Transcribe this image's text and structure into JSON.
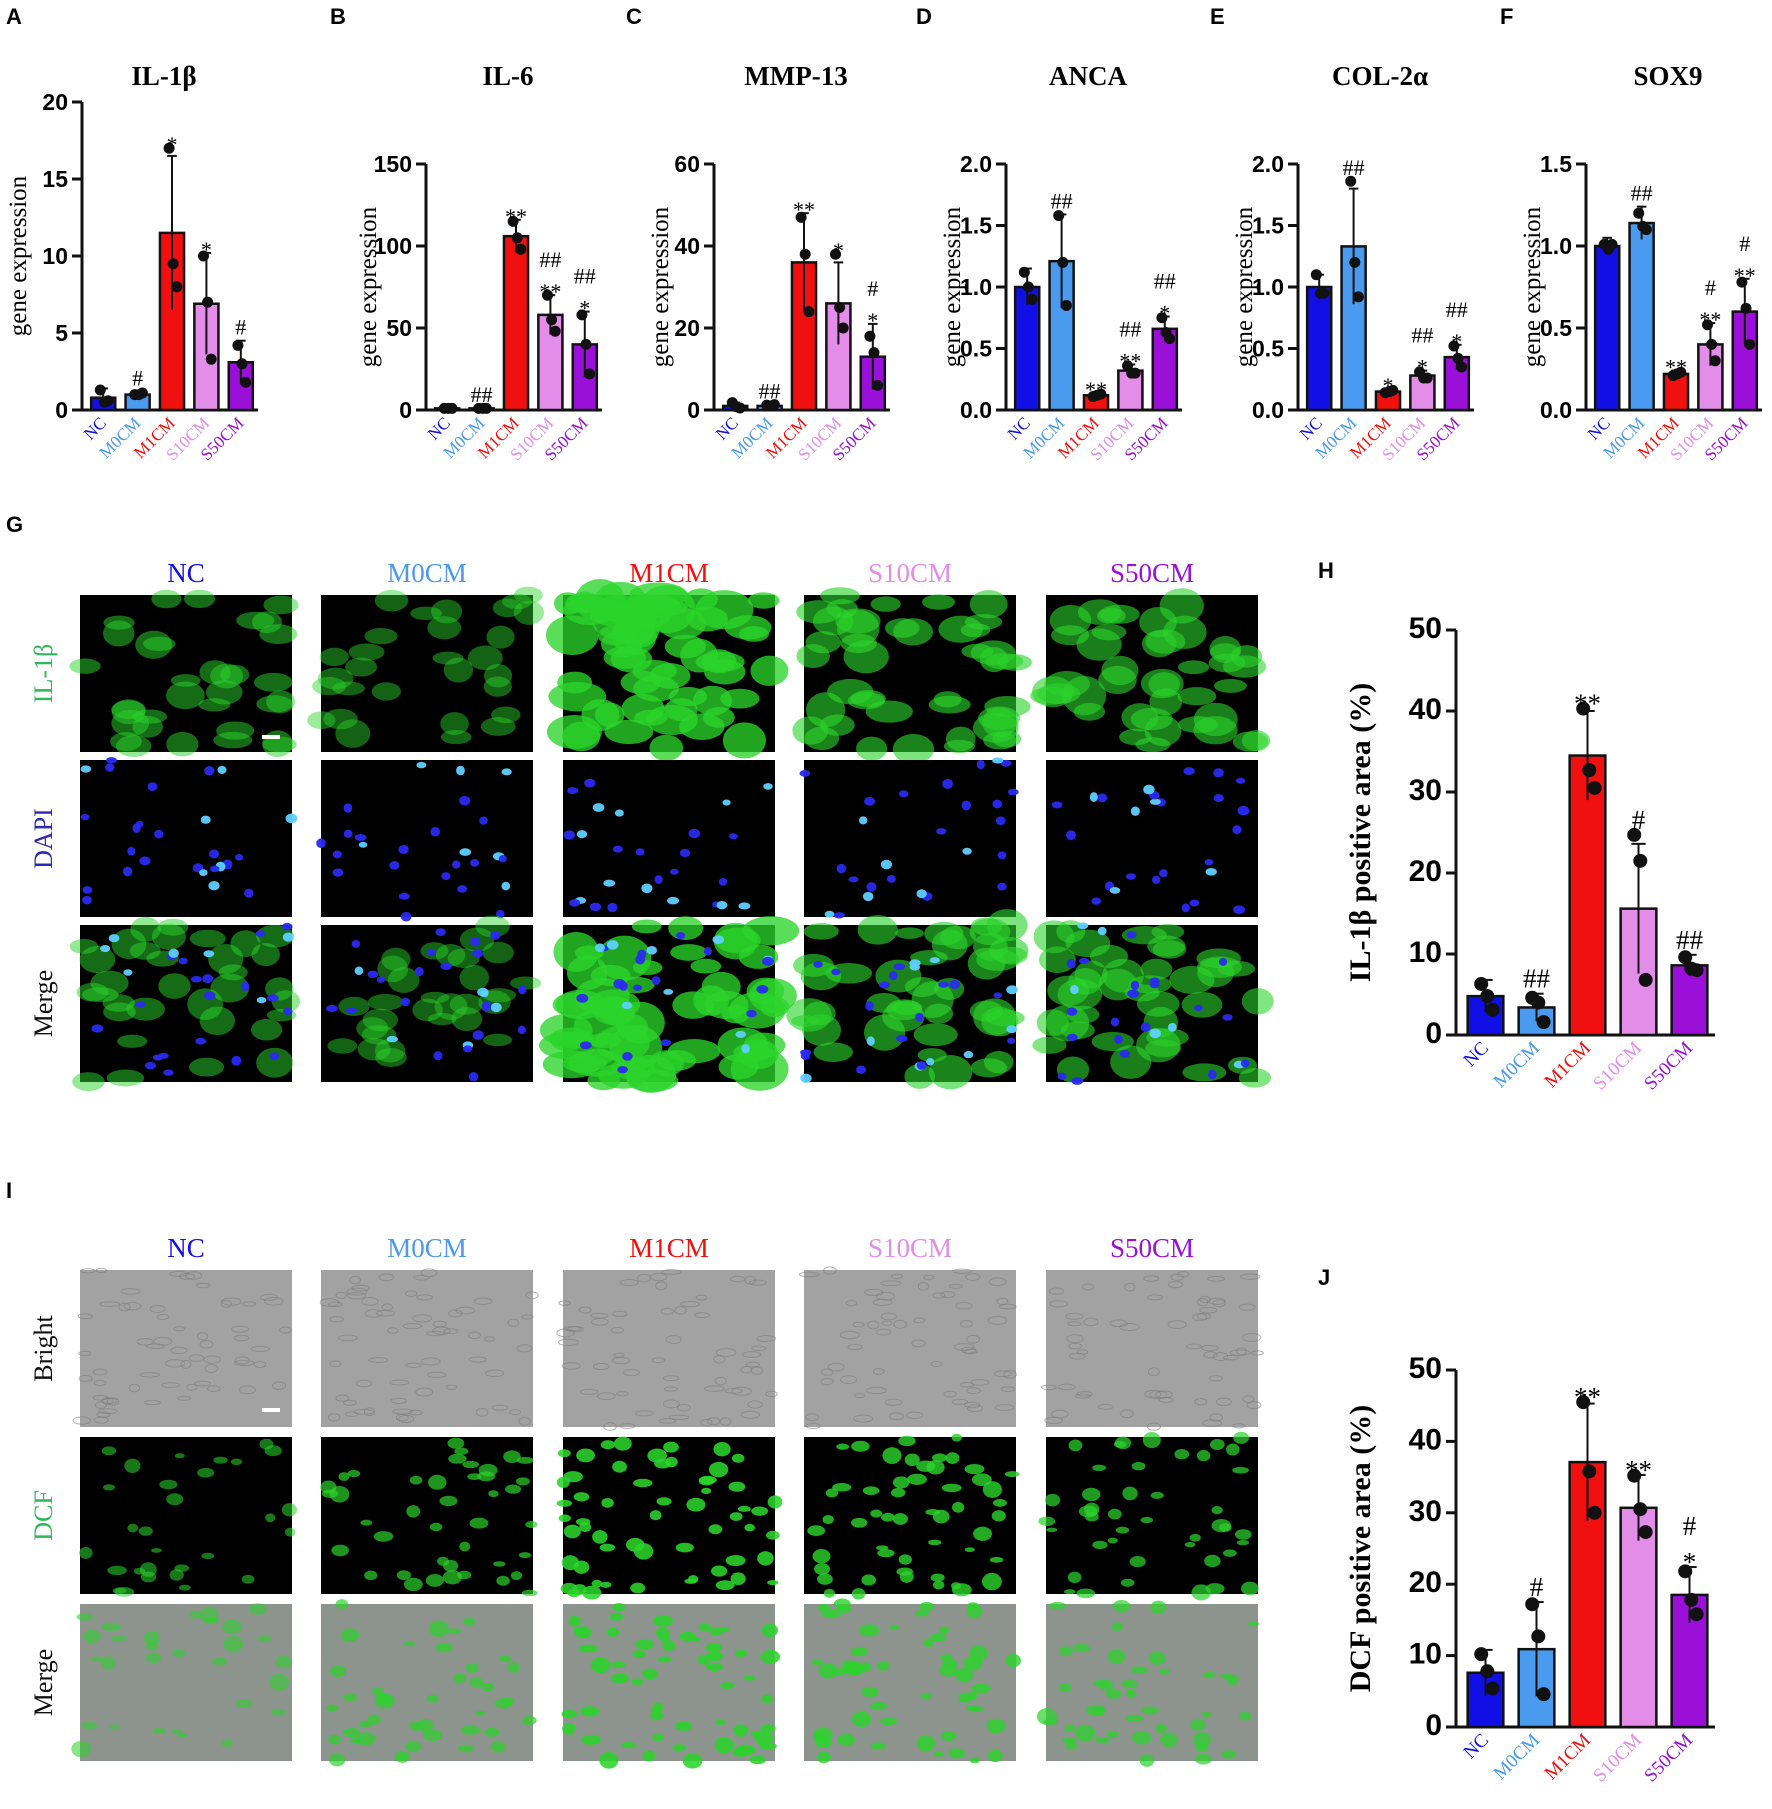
{
  "colors": {
    "NC": "#1010e6",
    "M0CM": "#4a9af0",
    "M1CM": "#f01010",
    "S10CM": "#e28ee8",
    "S50CM": "#9a10d8",
    "ink": "#111111",
    "fluor_green": "#2bd42b",
    "nuclei_blue": "#2a2af0",
    "bright_gray": "#9a9a9a"
  },
  "panel_letters": [
    "A",
    "B",
    "C",
    "D",
    "E",
    "F",
    "G",
    "H",
    "I",
    "J"
  ],
  "chart_data": [
    {
      "panel": "A",
      "type": "bar",
      "title": "IL-1β",
      "ylabel": "gene expression",
      "categories": [
        "NC",
        "M0CM",
        "M1CM",
        "S10CM",
        "S50CM"
      ],
      "values": [
        0.8,
        1.0,
        11.5,
        6.9,
        3.1
      ],
      "errors": [
        0.6,
        0.2,
        5.0,
        3.3,
        1.4
      ],
      "points": [
        [
          1.3,
          0.5,
          0.6
        ],
        [
          1.0,
          1.0,
          1.1
        ],
        [
          17.0,
          9.5,
          8.0
        ],
        [
          10.0,
          7.0,
          3.3
        ],
        [
          4.2,
          3.0,
          1.8
        ]
      ],
      "annotations": [
        "",
        "#",
        "*",
        "*",
        "#"
      ],
      "ylim": [
        0,
        20
      ],
      "yticks": [
        "0",
        "5",
        "10",
        "15",
        "20"
      ],
      "ytick_values": [
        0,
        5,
        10,
        15,
        20
      ]
    },
    {
      "panel": "B",
      "type": "bar",
      "title": "IL-6",
      "ylabel": "gene expression",
      "categories": [
        "NC",
        "M0CM",
        "M1CM",
        "S10CM",
        "S50CM"
      ],
      "values": [
        1,
        1,
        106,
        58,
        40
      ],
      "errors": [
        0.3,
        0.3,
        10,
        12,
        20
      ],
      "points": [
        [
          1,
          1,
          1
        ],
        [
          1,
          1,
          1
        ],
        [
          115,
          105,
          98
        ],
        [
          70,
          55,
          48
        ],
        [
          58,
          40,
          22
        ]
      ],
      "annotations": [
        "",
        "##",
        "**",
        "##\n**",
        "##\n*"
      ],
      "ylim": [
        0,
        150
      ],
      "yticks": [
        "0",
        "50",
        "100",
        "150"
      ],
      "ytick_values": [
        0,
        50,
        100,
        150
      ]
    },
    {
      "panel": "C",
      "type": "bar",
      "title": "MMP-13",
      "ylabel": "gene expression",
      "categories": [
        "NC",
        "M0CM",
        "M1CM",
        "S10CM",
        "S50CM"
      ],
      "values": [
        1,
        1,
        36,
        26,
        13
      ],
      "errors": [
        0.8,
        0.4,
        12,
        10,
        8
      ],
      "points": [
        [
          1.8,
          0.8,
          0.5
        ],
        [
          1.2,
          1.0,
          1.3
        ],
        [
          47,
          38,
          24
        ],
        [
          38,
          25,
          20
        ],
        [
          18,
          14,
          6
        ]
      ],
      "annotations": [
        "",
        "##",
        "**",
        "*",
        "#\n*"
      ],
      "ylim": [
        0,
        60
      ],
      "yticks": [
        "0",
        "20",
        "40",
        "60"
      ],
      "ytick_values": [
        0,
        20,
        40,
        60
      ]
    },
    {
      "panel": "D",
      "type": "bar",
      "title": "ANCA",
      "ylabel": "gene expression",
      "categories": [
        "NC",
        "M0CM",
        "M1CM",
        "S10CM",
        "S50CM"
      ],
      "values": [
        1.0,
        1.21,
        0.12,
        0.32,
        0.66
      ],
      "errors": [
        0.15,
        0.38,
        0.02,
        0.05,
        0.1
      ],
      "points": [
        [
          1.12,
          1.0,
          0.9
        ],
        [
          1.58,
          1.2,
          0.85
        ],
        [
          0.11,
          0.12,
          0.13
        ],
        [
          0.36,
          0.3,
          0.3
        ],
        [
          0.75,
          0.63,
          0.58
        ]
      ],
      "annotations": [
        "",
        "##",
        "**",
        "##\n**",
        "##\n*"
      ],
      "ylim": [
        0,
        2.0
      ],
      "yticks": [
        "0.0",
        "0.5",
        "1.0",
        "1.5",
        "2.0"
      ],
      "ytick_values": [
        0,
        0.5,
        1.0,
        1.5,
        2.0
      ]
    },
    {
      "panel": "E",
      "type": "bar",
      "title": "COL-2α",
      "ylabel": "gene expression",
      "categories": [
        "NC",
        "M0CM",
        "M1CM",
        "S10CM",
        "S50CM"
      ],
      "values": [
        1.0,
        1.33,
        0.15,
        0.28,
        0.43
      ],
      "errors": [
        0.1,
        0.47,
        0.02,
        0.04,
        0.1
      ],
      "points": [
        [
          1.1,
          0.95,
          0.95
        ],
        [
          1.86,
          1.2,
          0.92
        ],
        [
          0.14,
          0.15,
          0.16
        ],
        [
          0.31,
          0.26,
          0.26
        ],
        [
          0.52,
          0.42,
          0.35
        ]
      ],
      "annotations": [
        "",
        "##",
        "*",
        "##\n*",
        "##\n*"
      ],
      "ylim": [
        0,
        2.0
      ],
      "yticks": [
        "0.0",
        "0.5",
        "1.0",
        "1.5",
        "2.0"
      ],
      "ytick_values": [
        0,
        0.5,
        1.0,
        1.5,
        2.0
      ]
    },
    {
      "panel": "F",
      "type": "bar",
      "title": "SOX9",
      "ylabel": "gene expression",
      "categories": [
        "NC",
        "M0CM",
        "M1CM",
        "S10CM",
        "S50CM"
      ],
      "values": [
        1.0,
        1.14,
        0.22,
        0.4,
        0.6
      ],
      "errors": [
        0.05,
        0.1,
        0.02,
        0.13,
        0.2
      ],
      "points": [
        [
          1.01,
          0.98,
          1.01
        ],
        [
          1.2,
          1.12,
          1.1
        ],
        [
          0.21,
          0.22,
          0.23
        ],
        [
          0.52,
          0.4,
          0.3
        ],
        [
          0.78,
          0.62,
          0.4
        ]
      ],
      "annotations": [
        "",
        "##",
        "**",
        "#\n**",
        "#\n**"
      ],
      "ylim": [
        0,
        1.5
      ],
      "yticks": [
        "0.0",
        "0.5",
        "1.0",
        "1.5"
      ],
      "ytick_values": [
        0,
        0.5,
        1.0,
        1.5
      ]
    },
    {
      "panel": "H",
      "type": "bar",
      "title": "",
      "ylabel": "IL-1β positive area (%)",
      "categories": [
        "NC",
        "M0CM",
        "M1CM",
        "S10CM",
        "S50CM"
      ],
      "values": [
        4.8,
        3.4,
        34.5,
        15.6,
        8.6
      ],
      "errors": [
        2.0,
        1.7,
        5.5,
        8.0,
        1.3
      ],
      "points": [
        [
          6.3,
          4.8,
          3.1
        ],
        [
          4.6,
          4.0,
          1.6
        ],
        [
          40.3,
          32.7,
          30.5
        ],
        [
          24.7,
          21.5,
          6.8
        ],
        [
          9.6,
          8.2,
          8.0
        ]
      ],
      "annotations": [
        "",
        "##",
        "**",
        "#",
        "##"
      ],
      "ylim": [
        0,
        50
      ],
      "yticks": [
        "0",
        "10",
        "20",
        "30",
        "40",
        "50"
      ],
      "ytick_values": [
        0,
        10,
        20,
        30,
        40,
        50
      ]
    },
    {
      "panel": "J",
      "type": "bar",
      "title": "",
      "ylabel": "DCF positive area (%)",
      "categories": [
        "NC",
        "M0CM",
        "M1CM",
        "S10CM",
        "S50CM"
      ],
      "values": [
        7.6,
        10.9,
        37.1,
        30.7,
        18.5
      ],
      "errors": [
        3.2,
        6.6,
        8.2,
        4.6,
        3.9
      ],
      "points": [
        [
          10.2,
          7.8,
          5.4
        ],
        [
          17.2,
          12.7,
          4.6
        ],
        [
          45.5,
          35.8,
          30.0
        ],
        [
          35.2,
          30.5,
          27.3
        ],
        [
          21.8,
          17.8,
          15.8
        ]
      ],
      "annotations": [
        "",
        "#",
        "**",
        "**",
        "#\n*"
      ],
      "ylim": [
        0,
        50
      ],
      "yticks": [
        "0",
        "10",
        "20",
        "30",
        "40",
        "50"
      ],
      "ytick_values": [
        0,
        10,
        20,
        30,
        40,
        50
      ]
    }
  ],
  "microscopy": {
    "G": {
      "columns": [
        "NC",
        "M0CM",
        "M1CM",
        "S10CM",
        "S50CM"
      ],
      "rows": [
        "IL-1β",
        "DAPI",
        "Merge"
      ],
      "green_density": [
        0.35,
        0.25,
        0.95,
        0.6,
        0.55
      ]
    },
    "I": {
      "columns": [
        "NC",
        "M0CM",
        "M1CM",
        "S10CM",
        "S50CM"
      ],
      "rows": [
        "Bright",
        "DCF",
        "Merge"
      ],
      "green_density": [
        0.25,
        0.55,
        0.95,
        0.8,
        0.6
      ]
    }
  }
}
